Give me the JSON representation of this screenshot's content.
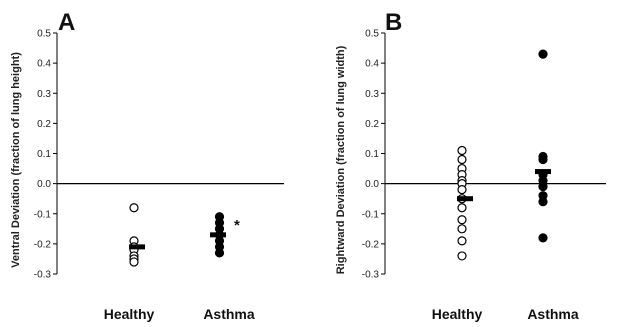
{
  "chart_data": [
    {
      "type": "scatter",
      "panel_label": "A",
      "title": "",
      "xlabel": "",
      "ylabel": "Ventral Deviation (fraction of lung height)",
      "ylim": [
        -0.3,
        0.5
      ],
      "yticks": [
        "0.5",
        "0.4",
        "0.3",
        "0.2",
        "0.1",
        "0.0",
        "-0.1",
        "-0.2",
        "-0.3"
      ],
      "categories": [
        "Healthy",
        "Asthma"
      ],
      "reference_line": 0,
      "grid": false,
      "series": [
        {
          "category": "Healthy",
          "marker": "open-circle",
          "points": [
            -0.08,
            -0.19,
            -0.21,
            -0.22,
            -0.24,
            -0.25,
            -0.26
          ],
          "mean": -0.21
        },
        {
          "category": "Asthma",
          "marker": "filled-circle",
          "points": [
            -0.11,
            -0.13,
            -0.15,
            -0.17,
            -0.19,
            -0.21,
            -0.23
          ],
          "mean": -0.17
        }
      ],
      "annotations": [
        {
          "category": "Asthma",
          "text": "*"
        }
      ]
    },
    {
      "type": "scatter",
      "panel_label": "B",
      "title": "",
      "xlabel": "",
      "ylabel": "Rightward Deviation (fraction of lung width)",
      "ylim": [
        -0.3,
        0.5
      ],
      "yticks": [
        "0.5",
        "0.4",
        "0.3",
        "0.2",
        "0.1",
        "0.0",
        "-0.1",
        "-0.2",
        "-0.3"
      ],
      "categories": [
        "Healthy",
        "Asthma"
      ],
      "reference_line": 0,
      "grid": false,
      "series": [
        {
          "category": "Healthy",
          "marker": "open-circle",
          "points": [
            0.11,
            0.08,
            0.05,
            0.03,
            0.01,
            0.0,
            -0.02,
            -0.05,
            -0.08,
            -0.12,
            -0.15,
            -0.19,
            -0.24
          ],
          "mean": -0.05
        },
        {
          "category": "Asthma",
          "marker": "filled-circle",
          "points": [
            0.43,
            0.09,
            0.08,
            0.03,
            0.01,
            -0.01,
            -0.04,
            -0.06,
            -0.18
          ],
          "mean": 0.04
        }
      ],
      "annotations": []
    }
  ]
}
